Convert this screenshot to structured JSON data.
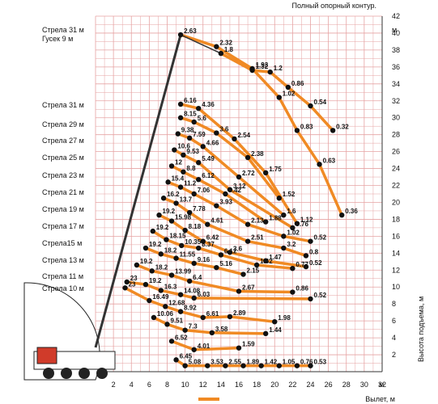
{
  "chart_data": {
    "type": "scatter",
    "title": "Полный опорный контур.",
    "xlabel": "Вылет, м",
    "ylabel": "Высота подъема, м",
    "x_axis_unit": "м",
    "y_axis_unit": "м",
    "xlim": [
      0,
      32
    ],
    "ylim": [
      0,
      42
    ],
    "x_ticks": [
      "2",
      "4",
      "6",
      "8",
      "10",
      "12",
      "14",
      "16",
      "18",
      "20",
      "22",
      "24",
      "26",
      "28",
      "30",
      "32"
    ],
    "y_ticks": [
      "2",
      "4",
      "6",
      "8",
      "10",
      "12",
      "14",
      "16",
      "18",
      "20",
      "22",
      "24",
      "26",
      "28",
      "30",
      "32",
      "34",
      "36",
      "38",
      "40",
      "42"
    ],
    "grid": true,
    "curve_color": "#f08a24",
    "grid_color": "#e6a3a3",
    "point_color": "#111111",
    "boom_labels": [
      "Стрела 31 м",
      "Гусек 9 м",
      "Стрела 31 м",
      "Стрела 29 м",
      "Стрела 27 м",
      "Стрела 25 м",
      "Стрела 23 м",
      "Стрела 21 м",
      "Стрела 19 м",
      "Стрела 17 м",
      "Стрела15 м",
      "Стрела 13 м",
      "Стрела 11 м",
      "Стрела 10 м"
    ],
    "series": [
      {
        "points": [
          [
            9.5,
            39.8,
            "2.63"
          ],
          [
            13.5,
            38.4,
            "2.32"
          ],
          [
            17.5,
            35.8,
            "1.93"
          ],
          [
            20.5,
            32.4,
            "1.02"
          ],
          [
            22.5,
            28.5,
            "0.83"
          ],
          [
            25,
            24.5,
            "0.63"
          ],
          [
            27.5,
            18.5,
            "0.36"
          ]
        ]
      },
      {
        "points": [
          [
            14,
            37.6,
            "1.8"
          ],
          [
            17.5,
            35.6,
            "1.32"
          ],
          [
            19.5,
            35.4,
            "1.2"
          ],
          [
            21.5,
            33.6,
            "0.86"
          ],
          [
            24,
            31.4,
            "0.54"
          ],
          [
            26.5,
            28.5,
            "0.32"
          ]
        ]
      },
      {
        "points": [
          [
            9.5,
            31.6,
            "6.16"
          ],
          [
            11.5,
            31.1,
            "4.36"
          ],
          [
            15.5,
            27.5,
            "2.54"
          ],
          [
            19,
            23.5,
            "1.75"
          ],
          [
            22.5,
            17.5,
            "1.12"
          ]
        ]
      },
      {
        "points": [
          [
            9.5,
            30,
            "8.15"
          ],
          [
            11,
            29.5,
            "5.6"
          ],
          [
            13.5,
            28.2,
            "3.6"
          ],
          [
            17,
            25.3,
            "2.38"
          ],
          [
            20.5,
            20.5,
            "1.52"
          ]
        ]
      },
      {
        "points": [
          [
            9.2,
            28.1,
            "9.38"
          ],
          [
            10.5,
            27.6,
            "7.59"
          ],
          [
            12,
            26.6,
            "4.66"
          ],
          [
            16,
            23,
            "2.72"
          ],
          [
            21,
            18.5,
            "1.6"
          ]
        ]
      },
      {
        "points": [
          [
            8.8,
            26.2,
            "10.6"
          ],
          [
            9.8,
            25.6,
            "9.53"
          ],
          [
            11.5,
            24.7,
            "5.49"
          ],
          [
            15,
            21.5,
            "3.12"
          ],
          [
            22,
            17,
            "0.76"
          ]
        ]
      },
      {
        "points": [
          [
            8.5,
            24.3,
            "12"
          ],
          [
            9.8,
            23.6,
            "8.8"
          ],
          [
            11.5,
            22.7,
            "6.12"
          ],
          [
            14.5,
            21,
            "3.42"
          ],
          [
            19,
            17.7,
            "1.88"
          ]
        ]
      },
      {
        "points": [
          [
            8.1,
            22.4,
            "15.4"
          ],
          [
            9.5,
            21.8,
            "11.2"
          ],
          [
            11,
            21,
            "7.06"
          ],
          [
            13.5,
            19.6,
            "3.93"
          ],
          [
            17,
            17.4,
            "2.13"
          ],
          [
            21,
            16,
            "1.02"
          ],
          [
            24,
            15.4,
            "0.52"
          ]
        ]
      },
      {
        "points": [
          [
            7.6,
            20.5,
            "16.2"
          ],
          [
            9,
            19.9,
            "13.7"
          ],
          [
            10.5,
            18.8,
            "7.78"
          ],
          [
            12.5,
            17.4,
            "4.61"
          ],
          [
            17,
            15.4,
            "2.51"
          ],
          [
            21,
            14.6,
            "3.2"
          ],
          [
            23.5,
            13.7,
            "0.8"
          ]
        ]
      },
      {
        "points": [
          [
            7.1,
            18.5,
            "19.2"
          ],
          [
            8.5,
            17.8,
            "15.98"
          ],
          [
            10,
            16.7,
            "8.18"
          ],
          [
            12,
            15.4,
            "6.42"
          ],
          [
            15,
            14.1,
            "3.6"
          ],
          [
            19,
            13.1,
            "1.47"
          ],
          [
            23.5,
            12.4,
            "0.52"
          ]
        ]
      },
      {
        "points": [
          [
            6.4,
            16.6,
            "19.2"
          ],
          [
            7.9,
            15.6,
            "18.15"
          ],
          [
            9.6,
            14.9,
            "10.35"
          ],
          [
            11.5,
            14.6,
            "8.37"
          ],
          [
            14,
            13.8,
            "6.12"
          ],
          [
            18,
            12.6,
            "1.62"
          ],
          [
            22,
            12.2,
            "0.77"
          ]
        ]
      },
      {
        "points": [
          [
            5.6,
            14.6,
            "19.2"
          ],
          [
            7.3,
            13.9,
            "18.2"
          ],
          [
            9,
            13.4,
            "11.55"
          ],
          [
            11,
            12.8,
            "9.16"
          ],
          [
            13.5,
            12.3,
            "5.16"
          ],
          [
            16.5,
            11.5,
            "2.15"
          ]
        ]
      },
      {
        "points": [
          [
            4.6,
            12.6,
            "19.2"
          ],
          [
            6.3,
            11.9,
            "18.2"
          ],
          [
            8.5,
            11.4,
            "13.99"
          ],
          [
            10.5,
            10.7,
            "6.4"
          ],
          [
            16,
            9.5,
            "2.67"
          ],
          [
            22,
            9.4,
            "0.86"
          ]
        ]
      },
      {
        "points": [
          [
            3.5,
            10.6,
            "23"
          ],
          [
            5.6,
            10.3,
            "19.2"
          ],
          [
            7.3,
            9.6,
            "16.3"
          ],
          [
            9.5,
            9.1,
            "14.08"
          ],
          [
            11,
            8.7,
            "6.03"
          ],
          [
            24,
            8.6,
            "0.52"
          ]
        ]
      },
      {
        "points": [
          [
            3.3,
            9.9,
            "23"
          ],
          [
            6,
            8.4,
            "16.49"
          ],
          [
            7.8,
            7.7,
            "12.68"
          ],
          [
            9.5,
            7.1,
            "8.92"
          ],
          [
            12,
            6.4,
            "6.61"
          ],
          [
            15,
            6.5,
            "2.89"
          ],
          [
            20,
            5.9,
            "1.98"
          ]
        ]
      },
      {
        "points": [
          [
            6.5,
            6.4,
            "10.06"
          ],
          [
            8,
            5.6,
            "9.51"
          ],
          [
            10,
            4.9,
            "7.3"
          ],
          [
            13,
            4.6,
            "3.58"
          ],
          [
            19,
            4.5,
            "1.44"
          ]
        ]
      },
      {
        "points": [
          [
            8.5,
            3.6,
            "6.52"
          ],
          [
            11,
            2.6,
            "4.01"
          ],
          [
            16,
            2.8,
            "1.59"
          ]
        ]
      },
      {
        "points": [
          [
            9,
            1.4,
            "6.45"
          ],
          [
            10,
            0.7,
            "5.08"
          ],
          [
            12.5,
            0.7,
            "3.53"
          ],
          [
            14.5,
            0.7,
            "2.55"
          ],
          [
            16.5,
            0.7,
            "1.89"
          ],
          [
            18.5,
            0.7,
            "1.42"
          ],
          [
            20.5,
            0.7,
            "1.05"
          ],
          [
            22.5,
            0.7,
            "0.76"
          ],
          [
            24,
            0.7,
            "0.53"
          ]
        ]
      }
    ],
    "legend_swatch_color": "#f08a24"
  }
}
